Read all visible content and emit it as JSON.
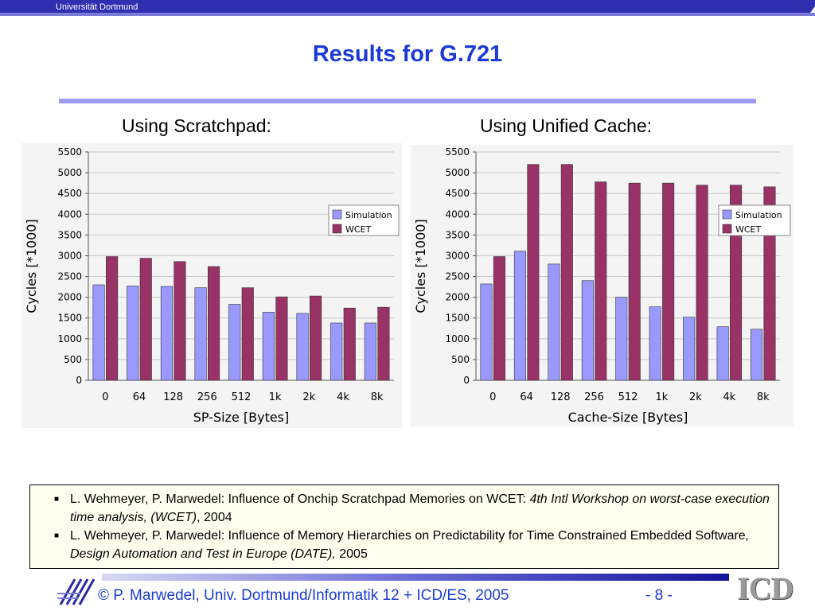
{
  "header": {
    "university": "Universität Dortmund"
  },
  "title": "Results for G.721",
  "left_heading": "Using Scratchpad:",
  "right_heading": "Using Unified Cache:",
  "chart_data": [
    {
      "type": "bar",
      "categories": [
        "0",
        "64",
        "128",
        "256",
        "512",
        "1k",
        "2k",
        "4k",
        "8k"
      ],
      "series": [
        {
          "name": "Simulation",
          "values": [
            2300,
            2270,
            2260,
            2230,
            1830,
            1640,
            1610,
            1380,
            1380
          ]
        },
        {
          "name": "WCET",
          "values": [
            2980,
            2940,
            2860,
            2740,
            2230,
            2010,
            2030,
            1740,
            1760
          ]
        }
      ],
      "xlabel": "SP-Size [Bytes]",
      "ylabel": "Cycles [*1000]",
      "ylim": [
        0,
        5500
      ],
      "yticks": [
        0,
        500,
        1000,
        1500,
        2000,
        2500,
        3000,
        3500,
        4000,
        4500,
        5000,
        5500
      ],
      "grid": true,
      "legend": "right",
      "colors": {
        "Simulation": "#9999ff",
        "WCET": "#993366"
      }
    },
    {
      "type": "bar",
      "categories": [
        "0",
        "64",
        "128",
        "256",
        "512",
        "1k",
        "2k",
        "4k",
        "8k"
      ],
      "series": [
        {
          "name": "Simulation",
          "values": [
            2320,
            3110,
            2800,
            2400,
            2000,
            1770,
            1520,
            1290,
            1230
          ]
        },
        {
          "name": "WCET",
          "values": [
            2980,
            5200,
            5200,
            4780,
            4750,
            4750,
            4700,
            4700,
            4660
          ]
        }
      ],
      "xlabel": "Cache-Size [Bytes]",
      "ylabel": "Cycles [*1000]",
      "ylim": [
        0,
        5500
      ],
      "yticks": [
        0,
        500,
        1000,
        1500,
        2000,
        2500,
        3000,
        3500,
        4000,
        4500,
        5000,
        5500
      ],
      "grid": true,
      "legend": "right",
      "colors": {
        "Simulation": "#9999ff",
        "WCET": "#993366"
      }
    }
  ],
  "references": [
    {
      "plain": "L. Wehmeyer, P. Marwedel: Influence of Onchip Scratchpad Memories on WCET: ",
      "italic": "4th Intl Workshop on worst-case execution time  analysis, (WCET)",
      "tail": ", 2004"
    },
    {
      "plain": "L. Wehmeyer, P. Marwedel: Influence of Memory Hierarchies on Predictability for Time Constrained Embedded Software",
      "italic": ", Design Automation and Test in Europe (DATE),",
      "tail": " 2005"
    }
  ],
  "footer": {
    "copyright": "© P. Marwedel, Univ. Dortmund/Informatik 12 + ICD/ES, 2005",
    "page": "-  8 -",
    "logo_text": "ICD"
  }
}
